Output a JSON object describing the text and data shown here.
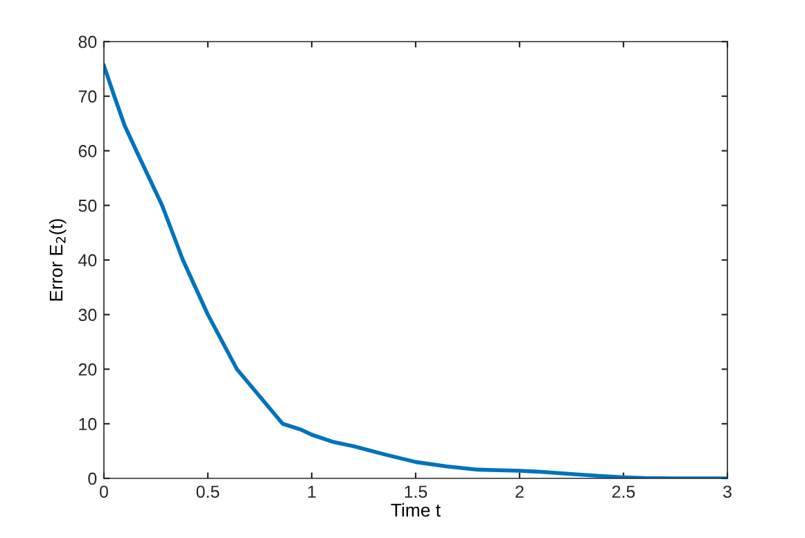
{
  "chart_data": {
    "type": "line",
    "xlabel": "Time t",
    "ylabel": "Error E$_{2}$(t)",
    "x": [
      0,
      0.05,
      0.1,
      0.156,
      0.28,
      0.38,
      0.5,
      0.64,
      0.86,
      0.95,
      1,
      1.1,
      1.2,
      1.35,
      1.5,
      1.65,
      1.8,
      1.9,
      2,
      2.1,
      2.25,
      2.4,
      2.5,
      2.6,
      2.75,
      3
    ],
    "series": [
      {
        "color": "#0072bd",
        "values": [
          75.6,
          70,
          64.6,
          60,
          50,
          40,
          30,
          20,
          10,
          8.9,
          8,
          6.7,
          5.9,
          4.4,
          3.0,
          2.2,
          1.6,
          1.5,
          1.4,
          1.2,
          0.8,
          0.4,
          0.2,
          0.05,
          0,
          0
        ]
      }
    ],
    "xlim": [
      0,
      3
    ],
    "ylim": [
      0,
      80
    ],
    "xticks": [
      0,
      0.5,
      1,
      1.5,
      2,
      2.5,
      3
    ],
    "yticks": [
      0,
      10,
      20,
      30,
      40,
      50,
      60,
      70,
      80
    ],
    "grid": false,
    "marker": "none",
    "line_style": "solid"
  }
}
